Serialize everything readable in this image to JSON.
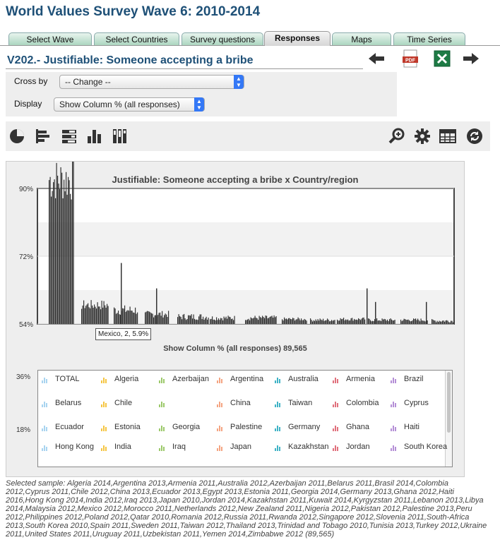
{
  "page_title": "World Values Survey Wave 6: 2010-2014",
  "tabs": [
    {
      "label": "Select Wave"
    },
    {
      "label": "Select Countries"
    },
    {
      "label": "Survey questions"
    },
    {
      "label": "Responses",
      "active": true
    },
    {
      "label": "Maps"
    },
    {
      "label": "Time Series"
    }
  ],
  "variable_title": "V202.- Justifiable: Someone accepting a bribe",
  "nav": {
    "back_icon": "arrow-left-icon",
    "pdf_icon": "pdf-icon",
    "pdf_label": "PDF",
    "excel_icon": "excel-icon",
    "forward_icon": "arrow-right-icon"
  },
  "controls": {
    "cross_by_label": "Cross by",
    "cross_by_value": "-- Change --",
    "display_label": "Display",
    "display_value": "Show Column % (all responses)"
  },
  "toolbar": {
    "left_icons": [
      "pie-chart-icon",
      "horizontal-bar-icon",
      "stacked-bar-icon",
      "column-chart-icon",
      "stacked-column-icon"
    ],
    "right_icons": [
      "zoom-icon",
      "settings-gear-icon",
      "table-icon",
      "refresh-icon"
    ]
  },
  "chart_data": {
    "type": "bar",
    "title": "Justifiable: Someone accepting a bribe x Country/region",
    "subtitle": "Show Column % (all responses) 89,565",
    "ylabels": [
      "90%",
      "72%",
      "54%"
    ],
    "y_ticks": [
      90,
      72,
      54
    ],
    "ylim": [
      54,
      90
    ],
    "tooltip": "Mexico, 2, 5.9%",
    "legend_axis_labels": [
      "36%",
      "18%"
    ],
    "colors": {
      "bar": "#333333",
      "plot_bg": "#ffffff",
      "alt_band": "#f2f2f2"
    }
  },
  "legend": {
    "items": [
      "TOTAL",
      "Algeria",
      "Azerbaijan",
      "Argentina",
      "Australia",
      "Armenia",
      "Brazil",
      "Belarus",
      "Chile",
      "",
      "China",
      "Taiwan",
      "Colombia",
      "Cyprus",
      "Ecuador",
      "Estonia",
      "Georgia",
      "Palestine",
      "Germany",
      "Ghana",
      "Haiti",
      "Hong Kong",
      "India",
      "Iraq",
      "Japan",
      "Kazakhstan",
      "Jordan",
      "South Korea"
    ],
    "colors": [
      "#a8d4f0",
      "#f5c542",
      "#9cc96b",
      "#f4a582",
      "#3fb3c6",
      "#e0707c",
      "#b48ed6"
    ]
  },
  "sample_text": "Selected sample: Algeria 2014,Argentina 2013,Armenia 2011,Australia 2012,Azerbaijan 2011,Belarus 2011,Brasil 2014,Colombia 2012,Cyprus 2011,Chile 2012,China 2013,Ecuador 2013,Egypt 2013,Estonia 2011,Georgia 2014,Germany 2013,Ghana 2012,Haiti 2016,Hong Kong 2014,India 2012,Iraq 2013,Japan 2010,Jordan 2014,Kazakhstan 2011,Kuwait 2014,Kyrgyzstan 2011,Lebanon 2013,Libya 2014,Malaysia 2012,Mexico 2012,Morocco 2011,Netherlands 2012,New Zealand 2011,Nigeria 2012,Pakistan 2012,Palestine 2013,Peru 2012,Philippines 2012,Poland 2012,Qatar 2010,Romania 2012,Russia 2011,Rwanda 2012,Singapore 2012,Slovenia 2011,South-Africa 2013,South Korea 2010,Spain 2011,Sweden 2011,Taiwan 2012,Thailand 2013,Trinidad and Tobago 2010,Tunisia 2013,Turkey 2012,Ukraine 2011,United States 2011,Uruguay 2011,Uzbekistan 2011,Yemen 2014,Zimbabwe 2012 (89,565)"
}
